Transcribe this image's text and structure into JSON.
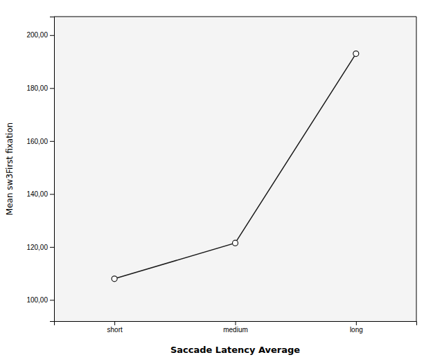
{
  "chart_data": {
    "type": "line",
    "categories": [
      "short",
      "medium",
      "long"
    ],
    "values": [
      108.0,
      121.5,
      193.0
    ],
    "xlabel": "Saccade Latency Average",
    "ylabel": "Mean sw3First fixation",
    "ylim": [
      92,
      207
    ],
    "yticks": [
      {
        "value": 100.0,
        "label": "100,00"
      },
      {
        "value": 120.0,
        "label": "120,00"
      },
      {
        "value": 140.0,
        "label": "140,00"
      },
      {
        "value": 160.0,
        "label": "160,00"
      },
      {
        "value": 180.0,
        "label": "180,00"
      },
      {
        "value": 200.0,
        "label": "200,00"
      }
    ],
    "color": "#1a1a1a",
    "marker": "circle",
    "grid": false
  }
}
